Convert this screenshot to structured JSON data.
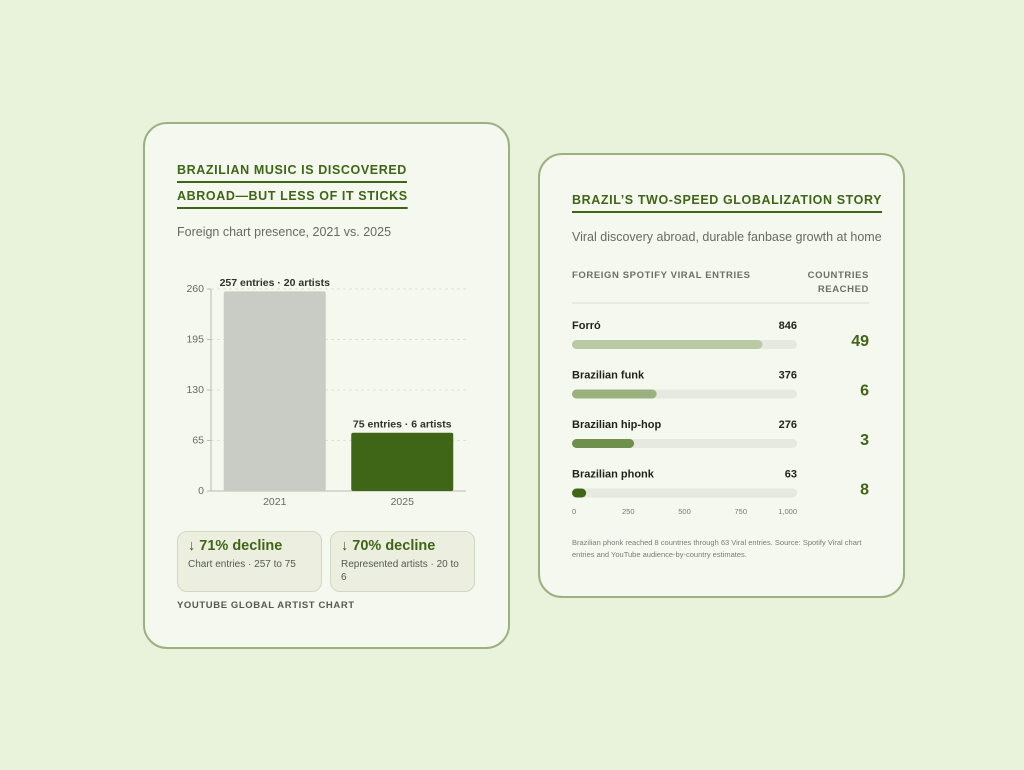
{
  "chart_data": [
    {
      "type": "bar",
      "title": "BRAZILIAN MUSIC IS DISCOVERED ABROAD—BUT LESS OF IT STICKS",
      "subtitle": "Foreign chart presence, 2021 vs. 2025",
      "categories": [
        "2021",
        "2025"
      ],
      "values": [
        257,
        75
      ],
      "value_labels": [
        "257 entries · 20 artists",
        "75 entries · 6 artists"
      ],
      "colors": [
        "#c9ccc4",
        "#3f6516"
      ],
      "ylim": [
        0,
        260
      ],
      "yticks": [
        0,
        65,
        130,
        195,
        260
      ],
      "grid": true,
      "callouts": [
        {
          "headline": "↓ 71% decline",
          "detail": "Chart entries · 257 to 75"
        },
        {
          "headline": "↓ 70% decline",
          "detail": "Represented artists · 20 to 6"
        }
      ],
      "source": "YOUTUBE GLOBAL ARTIST CHART"
    },
    {
      "type": "hbar",
      "title": "BRAZIL’S TWO-SPEED GLOBALIZATION STORY",
      "subtitle": "Viral discovery abroad, durable fanbase growth at home",
      "value_header": "FOREIGN SPOTIFY VIRAL ENTRIES",
      "side_header": "COUNTRIES REACHED",
      "categories": [
        "Forró",
        "Brazilian funk",
        "Brazilian hip-hop",
        "Brazilian phonk"
      ],
      "values": [
        846,
        376,
        276,
        63
      ],
      "colors": [
        "#b9c9a3",
        "#9bb07f",
        "#6f8f4c",
        "#3f6516"
      ],
      "side_values": [
        49,
        6,
        3,
        8
      ],
      "xlim": [
        0,
        1000
      ],
      "xticks": [
        0,
        250,
        500,
        750,
        {
          "value": 1000,
          "label": "1,000"
        }
      ],
      "note": "Brazilian phonk reached 8 countries through 63 Viral entries. Source: Spotify Viral chart entries and YouTube audience-by-country estimates."
    }
  ]
}
